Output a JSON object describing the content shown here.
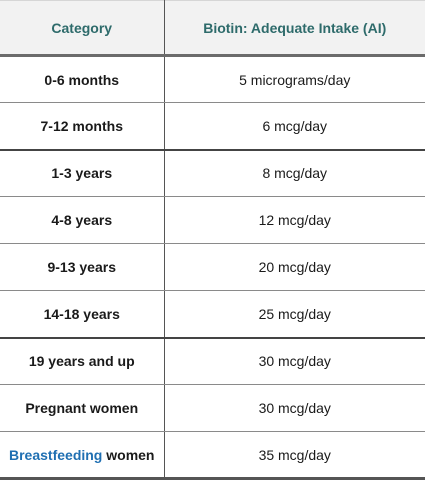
{
  "header": {
    "category": "Category",
    "intake": "Biotin: Adequate Intake (AI)"
  },
  "rows": [
    {
      "category": "0-6 months",
      "value": "5 micrograms/day"
    },
    {
      "category": "7-12 months",
      "value": "6 mcg/day"
    },
    {
      "category": "1-3 years",
      "value": "8 mcg/day"
    },
    {
      "category": "4-8 years",
      "value": "12 mcg/day"
    },
    {
      "category": "9-13 years",
      "value": "20 mcg/day"
    },
    {
      "category": "14-18 years",
      "value": "25 mcg/day"
    },
    {
      "category": "19 years and up",
      "value": "30 mcg/day"
    },
    {
      "category": "Pregnant women",
      "value": "30 mcg/day"
    },
    {
      "category_link": "Breastfeeding",
      "category_rest": " women",
      "value": "35 mcg/day"
    }
  ],
  "colors": {
    "header_text": "#2e6b6b",
    "link": "#1f6fb2",
    "header_background": "#f2f2f2"
  }
}
